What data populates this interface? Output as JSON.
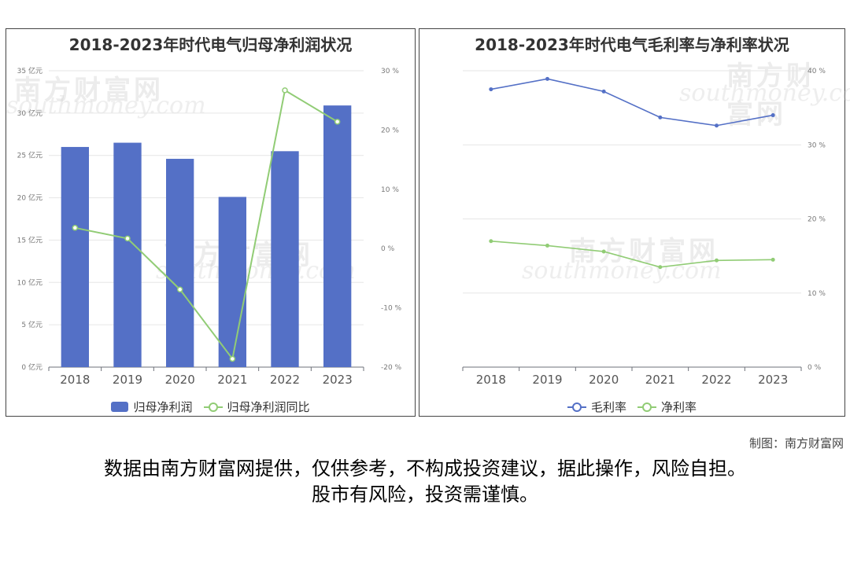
{
  "watermark": {
    "cn": "南方财富网",
    "en": "southmoney.com"
  },
  "footer": {
    "credit": "制图：南方财富网",
    "disclaimer_line1": "数据由南方财富网提供，仅供参考，不构成投资建议，据此操作，风险自担。",
    "disclaimer_line2": "股市有风险，投资需谨慎。"
  },
  "colors": {
    "blue": "#5470c6",
    "green": "#91cc75"
  },
  "chart_data": [
    {
      "type": "bar+line",
      "title": "2018-2023年时代电气归母净利润状况",
      "categories": [
        "2018",
        "2019",
        "2020",
        "2021",
        "2022",
        "2023"
      ],
      "yLeft": {
        "min": 0,
        "max": 35,
        "ticks": [
          0,
          5,
          10,
          15,
          20,
          25,
          30,
          35
        ],
        "unit": "亿元"
      },
      "yRight": {
        "min": -20,
        "max": 30,
        "ticks": [
          -20,
          -10,
          0,
          10,
          20,
          30
        ],
        "unit": "%"
      },
      "series": [
        {
          "name": "归母净利润",
          "type": "bar",
          "axis": "left",
          "color": "#5470c6",
          "values": [
            26.0,
            26.5,
            24.6,
            20.1,
            25.5,
            30.9
          ]
        },
        {
          "name": "归母净利润同比",
          "type": "line",
          "axis": "right",
          "color": "#91cc75",
          "values": [
            3.5,
            1.7,
            -6.9,
            -18.6,
            26.7,
            21.4
          ]
        }
      ],
      "legend": "bottom",
      "grid": true
    },
    {
      "type": "line",
      "title": "2018-2023年时代电气毛利率与净利率状况",
      "categories": [
        "2018",
        "2019",
        "2020",
        "2021",
        "2022",
        "2023"
      ],
      "yRight": {
        "min": 0,
        "max": 40,
        "ticks": [
          0,
          10,
          20,
          30,
          40
        ],
        "unit": "%"
      },
      "series": [
        {
          "name": "毛利率",
          "type": "line",
          "color": "#5470c6",
          "values": [
            37.5,
            38.9,
            37.2,
            33.7,
            32.6,
            34.0
          ]
        },
        {
          "name": "净利率",
          "type": "line",
          "color": "#91cc75",
          "values": [
            17.0,
            16.4,
            15.6,
            13.5,
            14.4,
            14.5
          ]
        }
      ],
      "legend": "bottom",
      "grid": true
    }
  ]
}
